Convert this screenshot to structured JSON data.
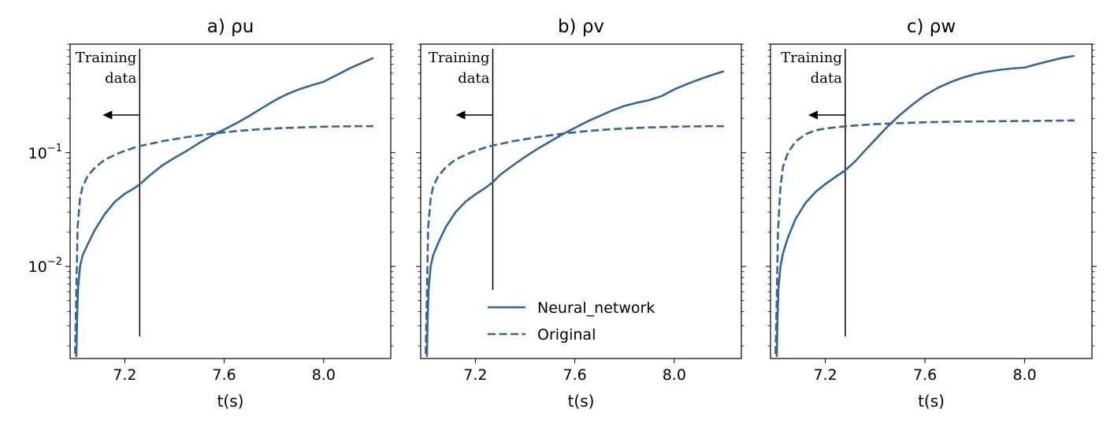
{
  "colors": {
    "series": "#336699",
    "axis": "#000000",
    "annotation": "#000000"
  },
  "legend": {
    "placement": "lower-center of panel b",
    "entries": [
      {
        "label": "Neural_network",
        "style": "solid"
      },
      {
        "label": "Original",
        "style": "dashed"
      }
    ]
  },
  "chart_data": [
    {
      "type": "line",
      "title": "a) ρu",
      "xlabel": "t(s)",
      "ylabel": "",
      "yscale": "log",
      "xlim": [
        6.98,
        8.27
      ],
      "ylim": [
        0.00155,
        0.9
      ],
      "xticks": [
        {
          "value": 7.2,
          "label": "7.2"
        },
        {
          "value": 7.6,
          "label": "7.6"
        },
        {
          "value": 8.0,
          "label": "8.0"
        }
      ],
      "yticks": [
        {
          "value": 0.1,
          "base": "10",
          "exp": "−1"
        },
        {
          "value": 0.01,
          "base": "10",
          "exp": "−2"
        }
      ],
      "grid": false,
      "annotation": {
        "line1": "Training",
        "line2": "data",
        "x": 7.26,
        "arrow": "left"
      },
      "series": [
        {
          "name": "Neural_network",
          "style": "solid",
          "x": [
            7.005,
            7.008,
            7.012,
            7.02,
            7.03,
            7.05,
            7.08,
            7.12,
            7.16,
            7.2,
            7.24,
            7.27,
            7.3,
            7.35,
            7.4,
            7.45,
            7.5,
            7.55,
            7.6,
            7.65,
            7.7,
            7.75,
            7.8,
            7.85,
            7.9,
            7.95,
            8.0,
            8.03,
            8.06,
            8.1,
            8.15,
            8.2
          ],
          "y": [
            0.0016,
            0.0035,
            0.0065,
            0.01,
            0.0125,
            0.0155,
            0.021,
            0.029,
            0.037,
            0.0435,
            0.049,
            0.055,
            0.063,
            0.077,
            0.09,
            0.104,
            0.122,
            0.141,
            0.16,
            0.182,
            0.21,
            0.245,
            0.285,
            0.325,
            0.36,
            0.39,
            0.42,
            0.455,
            0.49,
            0.545,
            0.61,
            0.68
          ]
        },
        {
          "name": "Original",
          "style": "dashed",
          "x": [
            7.0,
            7.005,
            7.01,
            7.02,
            7.03,
            7.05,
            7.08,
            7.12,
            7.18,
            7.25,
            7.35,
            7.45,
            7.55,
            7.65,
            7.75,
            7.85,
            7.95,
            8.05,
            8.15,
            8.2
          ],
          "y": [
            0.0017,
            0.006,
            0.022,
            0.04,
            0.05,
            0.062,
            0.074,
            0.087,
            0.1,
            0.113,
            0.126,
            0.137,
            0.147,
            0.155,
            0.161,
            0.165,
            0.168,
            0.17,
            0.171,
            0.171
          ]
        }
      ]
    },
    {
      "type": "line",
      "title": "b) ρv",
      "xlabel": "t(s)",
      "ylabel": "",
      "yscale": "log",
      "xlim": [
        6.98,
        8.27
      ],
      "ylim": [
        0.00155,
        0.9
      ],
      "xticks": [
        {
          "value": 7.2,
          "label": "7.2"
        },
        {
          "value": 7.6,
          "label": "7.6"
        },
        {
          "value": 8.0,
          "label": "8.0"
        }
      ],
      "yticks": [
        {
          "value": 0.1,
          "base": "10",
          "exp": "−1"
        },
        {
          "value": 0.01,
          "base": "10",
          "exp": "−2"
        }
      ],
      "grid": false,
      "annotation": {
        "line1": "Training",
        "line2": "data",
        "x": 7.27,
        "arrow": "left"
      },
      "series": [
        {
          "name": "Neural_network",
          "style": "solid",
          "x": [
            7.005,
            7.008,
            7.012,
            7.02,
            7.03,
            7.05,
            7.08,
            7.12,
            7.16,
            7.2,
            7.24,
            7.27,
            7.3,
            7.35,
            7.4,
            7.45,
            7.5,
            7.55,
            7.6,
            7.65,
            7.7,
            7.75,
            7.8,
            7.85,
            7.9,
            7.95,
            8.0,
            8.05,
            8.1,
            8.15,
            8.2
          ],
          "y": [
            0.0016,
            0.0035,
            0.0065,
            0.01,
            0.0125,
            0.016,
            0.022,
            0.03,
            0.037,
            0.043,
            0.049,
            0.055,
            0.064,
            0.077,
            0.092,
            0.108,
            0.125,
            0.145,
            0.165,
            0.188,
            0.21,
            0.235,
            0.258,
            0.275,
            0.29,
            0.315,
            0.36,
            0.4,
            0.44,
            0.48,
            0.52
          ]
        },
        {
          "name": "Original",
          "style": "dashed",
          "x": [
            7.0,
            7.005,
            7.01,
            7.02,
            7.03,
            7.05,
            7.08,
            7.12,
            7.18,
            7.25,
            7.35,
            7.45,
            7.55,
            7.65,
            7.75,
            7.85,
            7.95,
            8.05,
            8.15,
            8.2
          ],
          "y": [
            0.0017,
            0.006,
            0.022,
            0.04,
            0.05,
            0.062,
            0.074,
            0.087,
            0.1,
            0.113,
            0.126,
            0.137,
            0.147,
            0.155,
            0.161,
            0.165,
            0.168,
            0.17,
            0.171,
            0.171
          ]
        }
      ]
    },
    {
      "type": "line",
      "title": "c) ρw",
      "xlabel": "t(s)",
      "ylabel": "",
      "yscale": "log",
      "xlim": [
        6.98,
        8.27
      ],
      "ylim": [
        0.00155,
        0.9
      ],
      "xticks": [
        {
          "value": 7.2,
          "label": "7.2"
        },
        {
          "value": 7.6,
          "label": "7.6"
        },
        {
          "value": 8.0,
          "label": "8.0"
        }
      ],
      "yticks": [
        {
          "value": 0.1,
          "base": "10",
          "exp": "−1"
        },
        {
          "value": 0.01,
          "base": "10",
          "exp": "−2"
        }
      ],
      "grid": false,
      "annotation": {
        "line1": "Training",
        "line2": "data",
        "x": 7.28,
        "arrow": "left"
      },
      "series": [
        {
          "name": "Neural_network",
          "style": "solid",
          "x": [
            7.005,
            7.008,
            7.012,
            7.02,
            7.03,
            7.05,
            7.08,
            7.12,
            7.16,
            7.2,
            7.24,
            7.28,
            7.32,
            7.36,
            7.4,
            7.45,
            7.5,
            7.55,
            7.6,
            7.65,
            7.7,
            7.75,
            7.8,
            7.85,
            7.9,
            7.95,
            8.0,
            8.05,
            8.1,
            8.15,
            8.2
          ],
          "y": [
            0.0016,
            0.0035,
            0.0065,
            0.01,
            0.013,
            0.018,
            0.026,
            0.036,
            0.045,
            0.053,
            0.061,
            0.07,
            0.084,
            0.105,
            0.13,
            0.17,
            0.215,
            0.265,
            0.32,
            0.37,
            0.415,
            0.455,
            0.49,
            0.515,
            0.535,
            0.55,
            0.56,
            0.6,
            0.64,
            0.68,
            0.71
          ]
        },
        {
          "name": "Original",
          "style": "dashed",
          "x": [
            7.0,
            7.005,
            7.01,
            7.02,
            7.03,
            7.05,
            7.08,
            7.12,
            7.16,
            7.2,
            7.25,
            7.3,
            7.4,
            7.5,
            7.6,
            7.7,
            7.8,
            7.9,
            8.0,
            8.1,
            8.2
          ],
          "y": [
            0.0017,
            0.005,
            0.02,
            0.05,
            0.075,
            0.1,
            0.125,
            0.145,
            0.157,
            0.163,
            0.168,
            0.172,
            0.178,
            0.182,
            0.185,
            0.187,
            0.188,
            0.189,
            0.19,
            0.191,
            0.192
          ]
        }
      ]
    }
  ]
}
